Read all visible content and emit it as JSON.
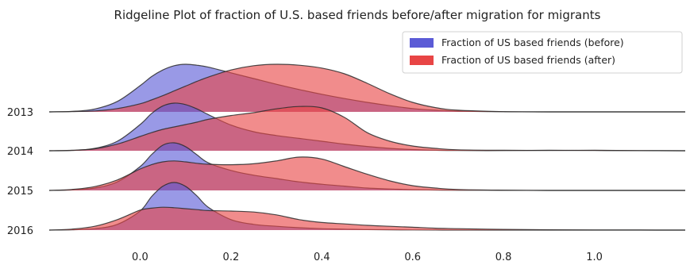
{
  "chart_data": {
    "type": "area",
    "subtype": "ridgeline",
    "title": "Ridgeline Plot of fraction of U.S. based friends before/after migration for migrants",
    "xlabel": "",
    "ylabel": "",
    "xlim": [
      -0.2,
      1.2
    ],
    "x_ticks": [
      0.0,
      0.2,
      0.4,
      0.6,
      0.8,
      1.0
    ],
    "x_tick_labels": [
      "0.0",
      "0.2",
      "0.4",
      "0.6",
      "0.8",
      "1.0"
    ],
    "categories": [
      "2013",
      "2014",
      "2015",
      "2016"
    ],
    "grid": false,
    "legend_position": "top-right",
    "legend": [
      {
        "label": "Fraction of US based friends (before)",
        "color": "#5b5bd6"
      },
      {
        "label": "Fraction of US based friends (after)",
        "color": "#e84545"
      }
    ],
    "x": [
      -0.2,
      -0.15,
      -0.1,
      -0.05,
      0.0,
      0.025,
      0.05,
      0.075,
      0.1,
      0.125,
      0.15,
      0.2,
      0.25,
      0.3,
      0.35,
      0.4,
      0.45,
      0.5,
      0.55,
      0.6,
      0.65,
      0.7,
      0.8,
      0.9,
      1.0,
      1.1,
      1.2
    ],
    "series": [
      {
        "name": "Fraction of US based friends (before)",
        "ridge": "2013",
        "values": [
          0,
          0.01,
          0.06,
          0.22,
          0.55,
          0.74,
          0.88,
          0.97,
          1.0,
          0.98,
          0.94,
          0.82,
          0.7,
          0.58,
          0.47,
          0.37,
          0.28,
          0.2,
          0.13,
          0.07,
          0.035,
          0.015,
          0.003,
          0,
          0,
          0,
          0
        ]
      },
      {
        "name": "Fraction of US based friends (after)",
        "ridge": "2013",
        "values": [
          0,
          0.005,
          0.02,
          0.07,
          0.17,
          0.25,
          0.34,
          0.44,
          0.54,
          0.64,
          0.73,
          0.88,
          0.97,
          1.0,
          0.98,
          0.92,
          0.8,
          0.6,
          0.38,
          0.2,
          0.09,
          0.035,
          0.005,
          0,
          0,
          0,
          0
        ]
      },
      {
        "name": "Fraction of US based friends (before)",
        "ridge": "2014",
        "values": [
          0,
          0.005,
          0.05,
          0.2,
          0.55,
          0.78,
          0.94,
          1.0,
          0.97,
          0.88,
          0.76,
          0.54,
          0.4,
          0.32,
          0.26,
          0.2,
          0.14,
          0.09,
          0.05,
          0.025,
          0.01,
          0.005,
          0.003,
          0.01,
          0.005,
          0.003,
          0
        ]
      },
      {
        "name": "Fraction of US based friends (after)",
        "ridge": "2014",
        "values": [
          0,
          0.01,
          0.04,
          0.14,
          0.3,
          0.38,
          0.45,
          0.5,
          0.55,
          0.6,
          0.66,
          0.74,
          0.8,
          0.88,
          0.93,
          0.9,
          0.7,
          0.38,
          0.2,
          0.1,
          0.05,
          0.02,
          0.01,
          0.005,
          0.01,
          0.003,
          0
        ]
      },
      {
        "name": "Fraction of US based friends (before)",
        "ridge": "2015",
        "values": [
          0,
          0.01,
          0.05,
          0.18,
          0.5,
          0.75,
          0.95,
          1.0,
          0.92,
          0.75,
          0.58,
          0.42,
          0.32,
          0.25,
          0.18,
          0.13,
          0.09,
          0.05,
          0.03,
          0.015,
          0.008,
          0.004,
          0.002,
          0,
          0,
          0,
          0
        ]
      },
      {
        "name": "Fraction of US based friends (after)",
        "ridge": "2015",
        "values": [
          0,
          0.02,
          0.08,
          0.22,
          0.45,
          0.54,
          0.6,
          0.62,
          0.6,
          0.57,
          0.55,
          0.54,
          0.56,
          0.62,
          0.7,
          0.66,
          0.5,
          0.34,
          0.2,
          0.1,
          0.05,
          0.02,
          0.005,
          0,
          0,
          0,
          0
        ]
      },
      {
        "name": "Fraction of US based friends (before)",
        "ridge": "2016",
        "values": [
          0,
          0.005,
          0.03,
          0.12,
          0.4,
          0.7,
          0.92,
          1.0,
          0.92,
          0.72,
          0.48,
          0.22,
          0.12,
          0.08,
          0.05,
          0.03,
          0.02,
          0.01,
          0.006,
          0.003,
          0.001,
          0,
          0,
          0,
          0,
          0,
          0
        ]
      },
      {
        "name": "Fraction of US based friends (after)",
        "ridge": "2016",
        "values": [
          0,
          0.02,
          0.08,
          0.22,
          0.42,
          0.46,
          0.48,
          0.47,
          0.45,
          0.43,
          0.41,
          0.4,
          0.38,
          0.32,
          0.22,
          0.16,
          0.13,
          0.1,
          0.08,
          0.06,
          0.04,
          0.03,
          0.015,
          0.006,
          0.002,
          0.001,
          0
        ]
      }
    ]
  }
}
